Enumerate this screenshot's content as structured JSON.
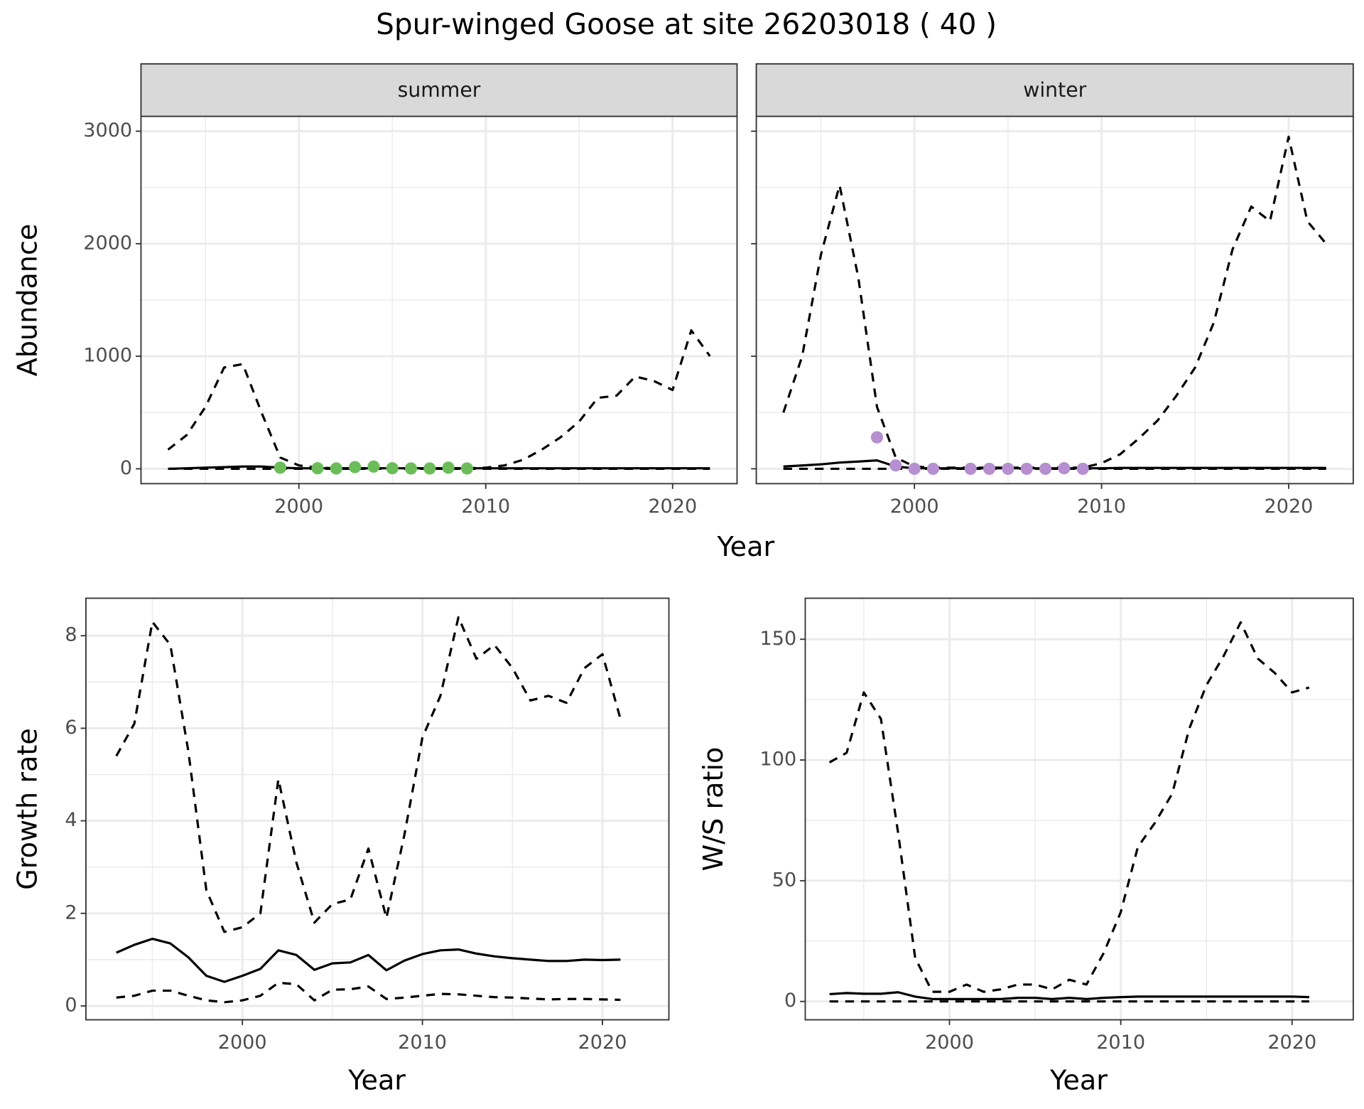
{
  "title": "Spur-winged Goose at site 26203018 ( 40 )",
  "chart_data": [
    {
      "type": "line",
      "facet": "summer",
      "ylabel": "Abundance",
      "xlabel": "Year",
      "x": [
        1993,
        1994,
        1995,
        1996,
        1997,
        1998,
        1999,
        2000,
        2001,
        2002,
        2003,
        2004,
        2005,
        2006,
        2007,
        2008,
        2009,
        2010,
        2011,
        2012,
        2013,
        2014,
        2015,
        2016,
        2017,
        2018,
        2019,
        2020,
        2021,
        2022
      ],
      "xlim": [
        1991.55,
        2023.45
      ],
      "xticks": [
        2000,
        2010,
        2020
      ],
      "xminor": [
        1995,
        2005,
        2015
      ],
      "ylim": [
        -132,
        3132
      ],
      "yticks": [
        0,
        1000,
        2000,
        3000
      ],
      "yminor": [
        500,
        1500,
        2500
      ],
      "grid": true,
      "series": [
        {
          "style": "dashed",
          "color": "#000000",
          "values": [
            170,
            300,
            550,
            900,
            930,
            500,
            100,
            30,
            10,
            5,
            5,
            5,
            5,
            5,
            5,
            5,
            5,
            10,
            30,
            80,
            170,
            280,
            420,
            630,
            650,
            820,
            780,
            700,
            1230,
            1000
          ]
        },
        {
          "style": "dashed",
          "color": "#000000",
          "values": [
            0,
            0,
            0,
            0,
            0,
            0,
            0,
            0,
            0,
            0,
            0,
            0,
            0,
            0,
            0,
            0,
            0,
            0,
            0,
            0,
            0,
            0,
            0,
            0,
            0,
            0,
            0,
            0,
            0,
            0
          ]
        },
        {
          "style": "solid",
          "color": "#000000",
          "values": [
            0,
            5,
            10,
            15,
            20,
            20,
            10,
            5,
            5,
            5,
            5,
            5,
            5,
            5,
            5,
            5,
            5,
            5,
            5,
            5,
            5,
            5,
            5,
            5,
            5,
            5,
            5,
            5,
            5,
            5
          ]
        },
        {
          "style": "points",
          "color": "#6cbd5a",
          "x": [
            1999,
            2001,
            2002,
            2003,
            2004,
            2005,
            2006,
            2007,
            2008,
            2009
          ],
          "values": [
            10,
            5,
            3,
            15,
            20,
            5,
            3,
            3,
            10,
            3
          ]
        }
      ]
    },
    {
      "type": "line",
      "facet": "winter",
      "y_tick_labels": false,
      "x": [
        1993,
        1994,
        1995,
        1996,
        1997,
        1998,
        1999,
        2000,
        2001,
        2002,
        2003,
        2004,
        2005,
        2006,
        2007,
        2008,
        2009,
        2010,
        2011,
        2012,
        2013,
        2014,
        2015,
        2016,
        2017,
        2018,
        2019,
        2020,
        2021,
        2022
      ],
      "xlim": [
        1991.55,
        2023.45
      ],
      "xticks": [
        2000,
        2010,
        2020
      ],
      "xminor": [
        1995,
        2005,
        2015
      ],
      "ylim": [
        -132,
        3132
      ],
      "yticks": [
        0,
        1000,
        2000,
        3000
      ],
      "yminor": [
        500,
        1500,
        2500
      ],
      "grid": true,
      "series": [
        {
          "style": "dashed",
          "color": "#000000",
          "values": [
            500,
            1000,
            1900,
            2520,
            1700,
            550,
            100,
            20,
            10,
            10,
            10,
            10,
            10,
            10,
            10,
            10,
            10,
            50,
            130,
            270,
            430,
            650,
            900,
            1300,
            1950,
            2330,
            2200,
            2950,
            2200,
            2000
          ]
        },
        {
          "style": "dashed",
          "color": "#000000",
          "values": [
            0,
            0,
            0,
            0,
            0,
            0,
            0,
            0,
            0,
            0,
            0,
            0,
            0,
            0,
            0,
            0,
            0,
            0,
            0,
            0,
            0,
            0,
            0,
            0,
            0,
            0,
            0,
            0,
            0,
            0
          ]
        },
        {
          "style": "solid",
          "color": "#000000",
          "values": [
            20,
            30,
            40,
            55,
            65,
            75,
            20,
            5,
            5,
            5,
            5,
            5,
            5,
            5,
            5,
            5,
            5,
            5,
            8,
            8,
            8,
            8,
            8,
            8,
            8,
            8,
            8,
            8,
            8,
            8
          ]
        },
        {
          "style": "points",
          "color": "#b68fd0",
          "x": [
            1998,
            1999,
            2000,
            2001,
            2003,
            2004,
            2005,
            2006,
            2007,
            2008,
            2009
          ],
          "values": [
            280,
            30,
            0,
            0,
            0,
            0,
            0,
            0,
            0,
            5,
            0
          ]
        }
      ]
    },
    {
      "type": "line",
      "ylabel": "Growth rate",
      "xlabel": "Year",
      "x": [
        1993,
        1994,
        1995,
        1996,
        1997,
        1998,
        1999,
        2000,
        2001,
        2002,
        2003,
        2004,
        2005,
        2006,
        2007,
        2008,
        2009,
        2010,
        2011,
        2012,
        2013,
        2014,
        2015,
        2016,
        2017,
        2018,
        2019,
        2020,
        2021
      ],
      "xlim": [
        1991.31,
        2023.69
      ],
      "xticks": [
        2000,
        2010,
        2020
      ],
      "xminor": [
        1995,
        2005,
        2015
      ],
      "ylim": [
        -0.3,
        8.81
      ],
      "yticks": [
        0,
        2,
        4,
        6,
        8
      ],
      "yminor": [
        1,
        3,
        5,
        7
      ],
      "grid": true,
      "series": [
        {
          "style": "dashed",
          "color": "#000000",
          "values": [
            5.4,
            6.1,
            8.3,
            7.8,
            5.5,
            2.5,
            1.6,
            1.7,
            2.0,
            4.9,
            3.1,
            1.8,
            2.2,
            2.3,
            3.4,
            1.9,
            3.7,
            5.8,
            6.7,
            8.4,
            7.5,
            7.8,
            7.3,
            6.6,
            6.7,
            6.55,
            7.3,
            7.6,
            6.2
          ]
        },
        {
          "style": "solid",
          "color": "#000000",
          "values": [
            1.15,
            1.32,
            1.45,
            1.35,
            1.05,
            0.65,
            0.52,
            0.65,
            0.8,
            1.2,
            1.1,
            0.78,
            0.92,
            0.94,
            1.1,
            0.77,
            0.98,
            1.12,
            1.2,
            1.22,
            1.13,
            1.07,
            1.03,
            1.0,
            0.97,
            0.97,
            1.0,
            0.99,
            1.0
          ]
        },
        {
          "style": "dashed",
          "color": "#000000",
          "values": [
            0.18,
            0.22,
            0.33,
            0.33,
            0.22,
            0.12,
            0.08,
            0.12,
            0.22,
            0.5,
            0.47,
            0.12,
            0.35,
            0.36,
            0.42,
            0.15,
            0.18,
            0.22,
            0.26,
            0.25,
            0.22,
            0.19,
            0.18,
            0.16,
            0.14,
            0.15,
            0.15,
            0.14,
            0.13
          ]
        }
      ]
    },
    {
      "type": "line",
      "ylabel": "W/S ratio",
      "xlabel": "Year",
      "x": [
        1993,
        1994,
        1995,
        1996,
        1997,
        1998,
        1999,
        2000,
        2001,
        2002,
        2003,
        2004,
        2005,
        2006,
        2007,
        2008,
        2009,
        2010,
        2011,
        2012,
        2013,
        2014,
        2015,
        2016,
        2017,
        2018,
        2019,
        2020,
        2021
      ],
      "xlim": [
        1991.58,
        2023.57
      ],
      "xticks": [
        2000,
        2010,
        2020
      ],
      "xminor": [
        1995,
        2005,
        2015
      ],
      "ylim": [
        -7.6,
        167
      ],
      "yticks": [
        0,
        50,
        100,
        150
      ],
      "yminor": [
        25,
        75,
        125
      ],
      "grid": true,
      "series": [
        {
          "style": "dashed",
          "color": "#000000",
          "values": [
            99,
            103,
            128,
            117,
            70,
            18,
            4,
            4,
            7,
            4,
            5,
            7,
            7,
            5,
            9,
            7,
            20,
            37,
            64,
            74,
            86,
            113,
            131,
            143,
            157,
            142,
            136,
            128,
            130
          ]
        },
        {
          "style": "solid",
          "color": "#000000",
          "values": [
            3,
            3.5,
            3.2,
            3.2,
            3.8,
            2,
            1,
            1,
            1,
            1,
            1,
            1.5,
            1.5,
            1,
            1.5,
            1,
            1.5,
            1.8,
            2,
            2,
            2,
            2,
            2,
            2,
            2,
            2,
            2,
            2,
            1.8
          ]
        },
        {
          "style": "dashed",
          "color": "#000000",
          "values": [
            0,
            0,
            0,
            0,
            0,
            0,
            0,
            0,
            0,
            0,
            0,
            0,
            0,
            0,
            0,
            0,
            0,
            0,
            0,
            0,
            0,
            0,
            0,
            0,
            0,
            0,
            0,
            0,
            0
          ]
        }
      ]
    }
  ]
}
